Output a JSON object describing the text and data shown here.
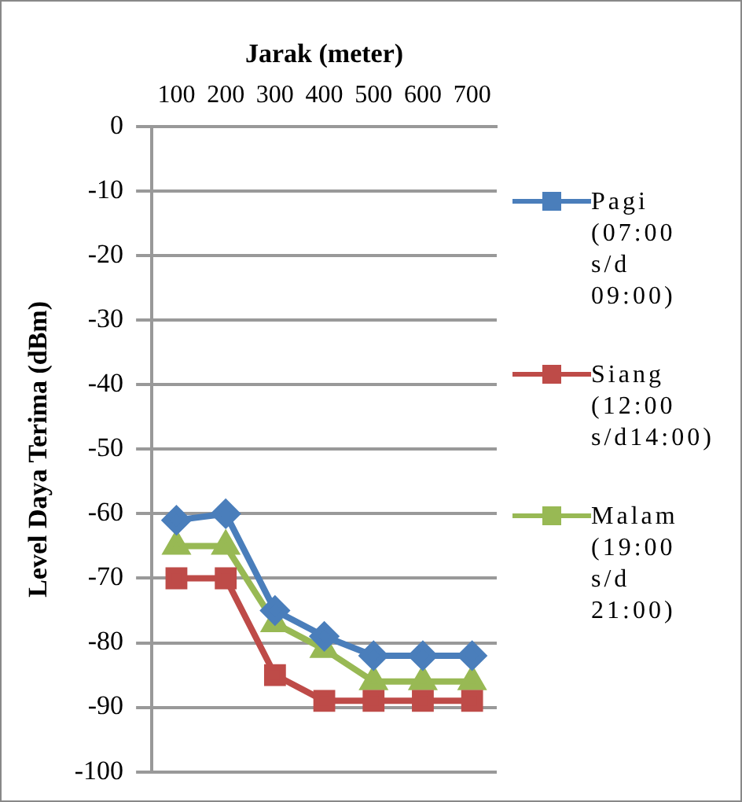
{
  "chart_data": {
    "type": "line",
    "xlabel": "Jarak (meter)",
    "ylabel": "Level Daya Terima (dBm)",
    "categories": [
      "100",
      "200",
      "300",
      "400",
      "500",
      "600",
      "700"
    ],
    "series": [
      {
        "name": "Pagi (07:00 s/d 09:00)",
        "color": "#4a7ebb",
        "marker": "diamond",
        "values": [
          -61,
          -60,
          -75,
          -79,
          -82,
          -82,
          -82
        ]
      },
      {
        "name": "Siang (12:00 s/d14:00)",
        "color": "#be4b48",
        "marker": "square",
        "values": [
          -70,
          -70,
          -85,
          -89,
          -89,
          -89,
          -89
        ]
      },
      {
        "name": "Malam (19:00 s/d 21:00)",
        "color": "#98b954",
        "marker": "triangle",
        "values": [
          -65,
          -65,
          -77,
          -81,
          -86,
          -86,
          -86
        ]
      }
    ],
    "ylim": [
      -100,
      0
    ],
    "yticks": [
      0,
      -10,
      -20,
      -30,
      -40,
      -50,
      -60,
      -70,
      -80,
      -90,
      -100
    ],
    "grid": "y",
    "legend": "right"
  }
}
